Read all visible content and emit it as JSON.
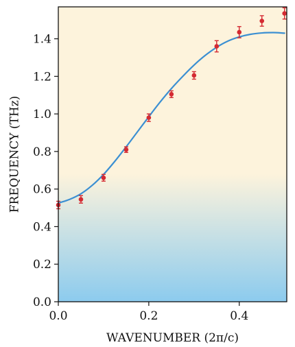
{
  "chart_data": {
    "type": "scatter",
    "title": "",
    "xlabel": "WAVENUMBER (2π/c)",
    "ylabel": "FREQUENCY (THz)",
    "xlim": [
      0,
      0.505
    ],
    "ylim": [
      0,
      1.57
    ],
    "xticks": [
      0.0,
      0.2,
      0.4
    ],
    "xtick_labels": [
      "0.0",
      "0.2",
      "0.4"
    ],
    "yticks": [
      0.0,
      0.2,
      0.4,
      0.6,
      0.8,
      1.0,
      1.2,
      1.4
    ],
    "ytick_labels": [
      "0.0",
      "0.2",
      "0.4",
      "0.6",
      "0.8",
      "1.0",
      "1.2",
      "1.4"
    ],
    "grid": false,
    "background": {
      "type": "vertical-gradient",
      "top_color": "#fdf3dc",
      "mid_color": "#fdf3dc",
      "bottom_color": "#8ccbee",
      "transition_start_y": 0.68
    },
    "series": [
      {
        "kind": "points-with-errorbars",
        "color": "#d42a32",
        "x": [
          0.0,
          0.05,
          0.1,
          0.15,
          0.2,
          0.25,
          0.3,
          0.35,
          0.4,
          0.45,
          0.5
        ],
        "y": [
          0.515,
          0.545,
          0.66,
          0.81,
          0.98,
          1.105,
          1.205,
          1.36,
          1.435,
          1.495,
          1.535
        ],
        "yerr": [
          0.02,
          0.02,
          0.018,
          0.015,
          0.02,
          0.018,
          0.02,
          0.03,
          0.03,
          0.028,
          0.03
        ]
      },
      {
        "kind": "line",
        "color": "#3b8fd2",
        "x": [
          0.0,
          0.025,
          0.05,
          0.075,
          0.1,
          0.125,
          0.15,
          0.175,
          0.2,
          0.225,
          0.25,
          0.275,
          0.3,
          0.325,
          0.35,
          0.375,
          0.4,
          0.425,
          0.45,
          0.475,
          0.5
        ],
        "y": [
          0.525,
          0.545,
          0.575,
          0.62,
          0.678,
          0.748,
          0.825,
          0.905,
          0.985,
          1.063,
          1.135,
          1.2,
          1.26,
          1.312,
          1.355,
          1.388,
          1.41,
          1.424,
          1.431,
          1.433,
          1.43
        ]
      }
    ]
  }
}
